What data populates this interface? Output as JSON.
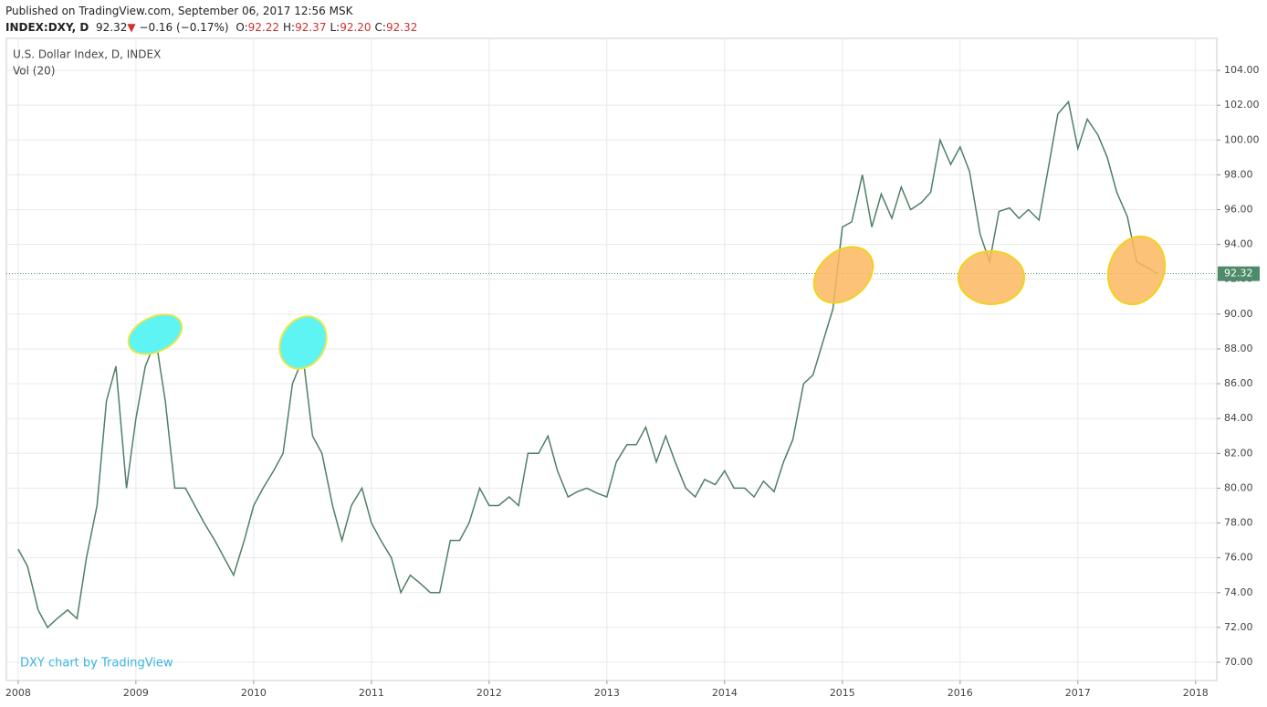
{
  "header": {
    "published": "Published on TradingView.com, September 06, 2017 12:56 MSK",
    "symbol": "INDEX:DXY, D",
    "last": "92.32",
    "arrow": "▼",
    "change": "−0.16 (−0.17%)",
    "ohlc": [
      {
        "label": "O:",
        "value": "92.22"
      },
      {
        "label": "H:",
        "value": "92.37"
      },
      {
        "label": "L:",
        "value": "92.20"
      },
      {
        "label": "C:",
        "value": "92.32"
      }
    ]
  },
  "chart_data": {
    "type": "line",
    "title": "U.S. Dollar Index, D, INDEX",
    "subtitle": "Vol (20)",
    "watermark": "DXY chart by TradingView",
    "color": "#4f7f66",
    "grid": true,
    "last_price": 92.32,
    "last_color": "#4e8b6a",
    "xlim": [
      2007.9,
      2018.18
    ],
    "ylim": [
      68.95,
      105.84
    ],
    "xticks": [
      2008,
      2009,
      2010,
      2011,
      2012,
      2013,
      2014,
      2015,
      2016,
      2017,
      2018
    ],
    "yticks": [
      {
        "value": 70,
        "label": "70.00"
      },
      {
        "value": 72,
        "label": "72.00"
      },
      {
        "value": 74,
        "label": "74.00"
      },
      {
        "value": 76,
        "label": "76.00"
      },
      {
        "value": 78,
        "label": "78.00"
      },
      {
        "value": 80,
        "label": "80.00"
      },
      {
        "value": 82,
        "label": "82.00"
      },
      {
        "value": 84,
        "label": "84.00"
      },
      {
        "value": 86,
        "label": "86.00"
      },
      {
        "value": 88,
        "label": "88.00"
      },
      {
        "value": 90,
        "label": "90.00"
      },
      {
        "value": 92,
        "label": "92.00"
      },
      {
        "value": 94,
        "label": "94.00"
      },
      {
        "value": 96,
        "label": "96.00"
      },
      {
        "value": 98,
        "label": "98.00"
      },
      {
        "value": 100,
        "label": "100.00"
      },
      {
        "value": 102,
        "label": "102.00"
      },
      {
        "value": 104,
        "label": "104.00"
      }
    ],
    "x": [
      2008,
      2008.08,
      2008.17,
      2008.25,
      2008.33,
      2008.42,
      2008.5,
      2008.58,
      2008.67,
      2008.75,
      2008.83,
      2008.92,
      2009,
      2009.08,
      2009.17,
      2009.25,
      2009.33,
      2009.42,
      2009.5,
      2009.58,
      2009.67,
      2009.75,
      2009.83,
      2009.92,
      2010,
      2010.08,
      2010.17,
      2010.25,
      2010.33,
      2010.42,
      2010.5,
      2010.58,
      2010.67,
      2010.75,
      2010.83,
      2010.92,
      2011,
      2011.08,
      2011.17,
      2011.25,
      2011.33,
      2011.42,
      2011.5,
      2011.58,
      2011.67,
      2011.75,
      2011.83,
      2011.92,
      2012,
      2012.08,
      2012.17,
      2012.25,
      2012.33,
      2012.42,
      2012.5,
      2012.58,
      2012.67,
      2012.75,
      2012.83,
      2012.92,
      2013,
      2013.08,
      2013.17,
      2013.25,
      2013.33,
      2013.42,
      2013.5,
      2013.58,
      2013.67,
      2013.75,
      2013.83,
      2013.92,
      2014,
      2014.08,
      2014.17,
      2014.25,
      2014.33,
      2014.42,
      2014.5,
      2014.58,
      2014.67,
      2014.75,
      2014.83,
      2014.92,
      2015,
      2015.08,
      2015.17,
      2015.25,
      2015.33,
      2015.42,
      2015.5,
      2015.58,
      2015.67,
      2015.75,
      2015.83,
      2015.92,
      2016,
      2016.08,
      2016.17,
      2016.25,
      2016.33,
      2016.42,
      2016.5,
      2016.58,
      2016.67,
      2016.75,
      2016.83,
      2016.92,
      2017,
      2017.08,
      2017.17,
      2017.25,
      2017.33,
      2017.42,
      2017.5,
      2017.58,
      2017.68
    ],
    "values": [
      76.5,
      75.5,
      73,
      72,
      72.5,
      73,
      72.5,
      76,
      79,
      85,
      87,
      80,
      84,
      87,
      88.5,
      85,
      80,
      80,
      79,
      78,
      77,
      76,
      75,
      77,
      79,
      80,
      81,
      82,
      86,
      87.5,
      83,
      82,
      79,
      77,
      79,
      80,
      78,
      77,
      76,
      74,
      75,
      74.5,
      74,
      74,
      77,
      77,
      78,
      80,
      79,
      79,
      79.5,
      79,
      82,
      82,
      83,
      81,
      79.5,
      79.8,
      80,
      79.7,
      79.5,
      81.5,
      82.5,
      82.5,
      83.5,
      81.5,
      83,
      81.5,
      80,
      79.5,
      80.5,
      80.2,
      81,
      80,
      80,
      79.5,
      80.4,
      79.8,
      81.5,
      82.8,
      86,
      86.5,
      88.3,
      90.3,
      95,
      95.3,
      98,
      95,
      96.9,
      95.5,
      97.3,
      96,
      96.4,
      97,
      100,
      98.6,
      99.6,
      98.2,
      94.6,
      93,
      95.9,
      96.1,
      95.5,
      96,
      95.4,
      98.4,
      101.5,
      102.2,
      99.5,
      101.2,
      100.3,
      99,
      97,
      95.6,
      93,
      92.7,
      92.32
    ]
  }
}
